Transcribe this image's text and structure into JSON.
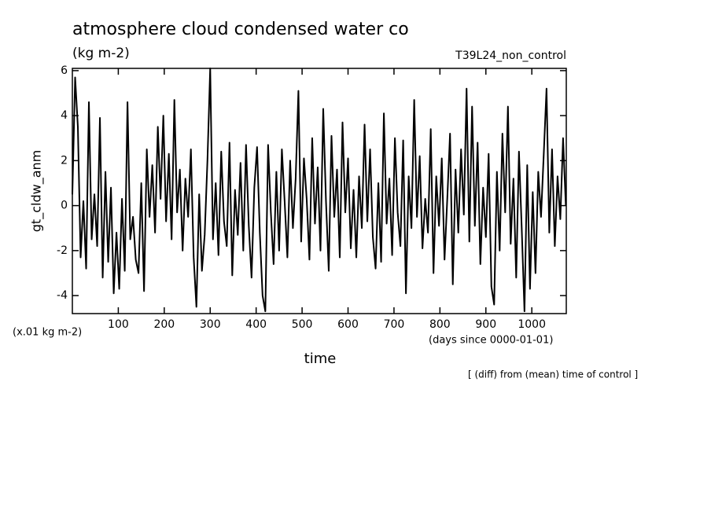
{
  "chart_data": {
    "type": "line",
    "title": "atmosphere cloud condensed water co",
    "subtitle": "(kg m-2)",
    "run_label": "T39L24_non_control",
    "y_label": "gt_cldw_anm",
    "y_unit": "(x.01 kg m-2)",
    "x_label": "time",
    "x_unit": "(days since 0000-01-01)",
    "note": "[ (diff) from (mean) time of control ]",
    "color": "#000000",
    "xlim": [
      0,
      1075
    ],
    "ylim": [
      -4.8,
      6.1
    ],
    "xticks": [
      100,
      200,
      300,
      400,
      500,
      600,
      700,
      800,
      900,
      1000
    ],
    "yticks": [
      -4,
      -2,
      0,
      2,
      4,
      6
    ],
    "x": [
      0,
      6,
      12,
      18,
      24,
      30,
      36,
      42,
      48,
      54,
      60,
      66,
      72,
      78,
      84,
      90,
      96,
      102,
      108,
      114,
      120,
      126,
      132,
      138,
      144,
      150,
      156,
      162,
      168,
      174,
      180,
      186,
      192,
      198,
      204,
      210,
      216,
      222,
      228,
      234,
      240,
      246,
      252,
      258,
      264,
      270,
      276,
      282,
      288,
      294,
      300,
      306,
      312,
      318,
      324,
      330,
      336,
      342,
      348,
      354,
      360,
      366,
      372,
      378,
      384,
      390,
      396,
      402,
      408,
      414,
      420,
      426,
      432,
      438,
      444,
      450,
      456,
      462,
      468,
      474,
      480,
      486,
      492,
      498,
      504,
      510,
      516,
      522,
      528,
      534,
      540,
      546,
      552,
      558,
      564,
      570,
      576,
      582,
      588,
      594,
      600,
      606,
      612,
      618,
      624,
      630,
      636,
      642,
      648,
      654,
      660,
      666,
      672,
      678,
      684,
      690,
      696,
      702,
      708,
      714,
      720,
      726,
      732,
      738,
      744,
      750,
      756,
      762,
      768,
      774,
      780,
      786,
      792,
      798,
      804,
      810,
      816,
      822,
      828,
      834,
      840,
      846,
      852,
      858,
      864,
      870,
      876,
      882,
      888,
      894,
      900,
      906,
      912,
      918,
      924,
      930,
      936,
      942,
      948,
      954,
      960,
      966,
      972,
      978,
      984,
      990,
      996,
      1002,
      1008,
      1014,
      1020,
      1026,
      1032,
      1038,
      1044,
      1050,
      1056,
      1062,
      1068,
      1074
    ],
    "values": [
      0.5,
      5.7,
      3.5,
      -2.3,
      0.2,
      -2.8,
      4.6,
      -1.5,
      0.5,
      -1.8,
      3.9,
      -3.2,
      1.5,
      -2.5,
      0.8,
      -3.9,
      -1.2,
      -3.7,
      0.3,
      -2.9,
      4.6,
      -1.5,
      -0.5,
      -2.4,
      -3.0,
      1.0,
      -3.8,
      2.5,
      -0.5,
      1.8,
      -1.2,
      3.5,
      0.3,
      4.0,
      -0.7,
      2.3,
      -1.5,
      4.7,
      -0.3,
      1.6,
      -2.0,
      1.2,
      -0.5,
      2.5,
      -2.3,
      -4.5,
      0.5,
      -2.9,
      -1.3,
      2.0,
      6.1,
      -1.5,
      1.0,
      -2.2,
      2.4,
      -0.7,
      -1.8,
      2.8,
      -3.1,
      0.7,
      -1.3,
      1.9,
      -2.0,
      2.7,
      -0.9,
      -3.2,
      0.8,
      2.6,
      -1.2,
      -4.0,
      -4.7,
      2.7,
      -0.3,
      -2.6,
      1.5,
      -2.0,
      2.5,
      0.2,
      -2.3,
      2.0,
      -1.0,
      1.2,
      5.1,
      -1.6,
      2.1,
      0.3,
      -2.4,
      3.0,
      -0.8,
      1.7,
      -2.0,
      4.3,
      0.2,
      -2.9,
      3.1,
      -0.5,
      1.6,
      -2.3,
      3.7,
      -0.3,
      2.1,
      -1.9,
      0.7,
      -2.3,
      1.3,
      -1.0,
      3.6,
      -0.7,
      2.5,
      -1.4,
      -2.8,
      1.0,
      -2.5,
      4.1,
      -0.8,
      1.2,
      -2.2,
      3.0,
      -0.3,
      -1.8,
      2.9,
      -3.9,
      1.3,
      -1.0,
      4.7,
      -0.5,
      2.2,
      -1.9,
      0.3,
      -1.2,
      3.4,
      -3.0,
      1.3,
      -0.9,
      2.1,
      -2.4,
      0.3,
      3.2,
      -3.5,
      1.6,
      -1.2,
      2.5,
      -0.4,
      5.2,
      -1.6,
      4.4,
      -0.9,
      2.8,
      -2.6,
      0.8,
      -1.4,
      2.3,
      -3.6,
      -4.4,
      1.5,
      -2.0,
      3.2,
      -0.3,
      4.4,
      -1.7,
      1.2,
      -3.2,
      2.4,
      -1.0,
      -4.7,
      1.8,
      -3.7,
      0.6,
      -3.0,
      1.5,
      -0.5,
      2.3,
      5.2,
      -1.2,
      2.5,
      -1.8,
      1.3,
      -0.6,
      3.0,
      0.0
    ]
  }
}
